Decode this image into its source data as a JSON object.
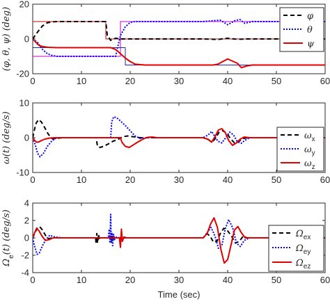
{
  "chart_data": [
    {
      "type": "line",
      "ylabel": "(φ, θ, ψ) (deg)",
      "xlabel": "",
      "xlim": [
        0,
        60
      ],
      "ylim": [
        -20,
        20
      ],
      "xticks": [
        0,
        10,
        20,
        30,
        40,
        50,
        60
      ],
      "yticks": [
        -20,
        0,
        20
      ],
      "legend_position": "top-right",
      "series": [
        {
          "name": "φ",
          "legend_main": "φ",
          "legend_sub": "",
          "color": "#000000",
          "dash": "6,4",
          "width": 2,
          "x": [
            0,
            1,
            2,
            3,
            4,
            5,
            10,
            15,
            15.3,
            16,
            17,
            18,
            19,
            20,
            30,
            35,
            38,
            40,
            42,
            44,
            50,
            60
          ],
          "y": [
            0,
            4,
            7.5,
            9.3,
            9.8,
            10,
            10,
            10,
            2,
            -0.8,
            0.4,
            0,
            0,
            0,
            0,
            0,
            -0.3,
            0.4,
            -0.2,
            0,
            0,
            0
          ]
        },
        {
          "name": "θ",
          "legend_main": "θ",
          "legend_sub": "",
          "color": "#0000ff",
          "dash": "2,2",
          "width": 2,
          "x": [
            0,
            1,
            2,
            3,
            4,
            5,
            10,
            17,
            17.5,
            18,
            19,
            20,
            21,
            30,
            35,
            37,
            38.5,
            40,
            41.5,
            42.5,
            43.5,
            45,
            50,
            60
          ],
          "y": [
            0,
            -2,
            -6,
            -8.5,
            -9.5,
            -10,
            -10,
            -10,
            -4,
            2,
            7,
            9.5,
            10,
            10,
            10,
            10.5,
            10.8,
            8.2,
            10.5,
            11.2,
            9,
            10,
            10,
            10
          ]
        },
        {
          "name": "ψ",
          "legend_main": "ψ",
          "legend_sub": "",
          "color": "#e00000",
          "dash": "",
          "width": 2,
          "x": [
            0,
            0.5,
            1,
            1.5,
            2,
            3,
            5,
            10,
            16,
            17,
            18,
            19,
            20,
            21,
            23,
            25,
            30,
            35,
            37,
            38,
            40,
            42,
            42.8,
            44,
            45,
            50,
            60
          ],
          "y": [
            0,
            -1.5,
            -3,
            -4,
            -4.3,
            -4.8,
            -5,
            -5,
            -5,
            -6,
            -8.5,
            -11,
            -13,
            -14.5,
            -15,
            -15,
            -15,
            -15,
            -15,
            -14.5,
            -11.5,
            -14,
            -16.5,
            -15.5,
            -15,
            -15,
            -15
          ]
        },
        {
          "name": "θ-reference",
          "legend_main": "",
          "legend_sub": "",
          "color": "#cc00cc",
          "dash": "",
          "width": 1,
          "x": [
            0,
            18,
            18,
            60
          ],
          "y": [
            -10,
            -10,
            10,
            10
          ]
        },
        {
          "name": "φ-reference",
          "legend_main": "",
          "legend_sub": "",
          "color": "#cc0000",
          "dash": "",
          "width": 1,
          "x": [
            0,
            15,
            15,
            60
          ],
          "y": [
            10,
            10,
            0,
            0
          ]
        },
        {
          "name": "ψ-reference",
          "legend_main": "",
          "legend_sub": "",
          "color": "#2222aa",
          "dash": "",
          "width": 1,
          "x": [
            0,
            19,
            19,
            60
          ],
          "y": [
            -5,
            -5,
            -15,
            -15
          ]
        }
      ]
    },
    {
      "type": "line",
      "ylabel": "ω(t) (deg/s)",
      "xlabel": "",
      "xlim": [
        0,
        60
      ],
      "ylim": [
        -10,
        10
      ],
      "xticks": [
        0,
        10,
        20,
        30,
        40,
        50,
        60
      ],
      "yticks": [
        -10,
        0,
        10
      ],
      "legend_position": "top-right",
      "series": [
        {
          "name": "ωx",
          "legend_main": "ω",
          "legend_sub": "x",
          "color": "#000000",
          "dash": "6,4",
          "width": 2,
          "x": [
            0,
            0.3,
            0.7,
            1.2,
            1.8,
            2.5,
            3.2,
            4,
            5,
            6,
            7,
            13,
            13.3,
            13.8,
            14.5,
            15.5,
            16.5,
            17.5,
            18.5,
            19.5,
            20.5,
            22,
            35,
            36,
            36.8,
            37.5,
            38.2,
            39,
            39.8,
            40.6,
            41.4,
            42.2,
            43,
            44,
            60
          ],
          "y": [
            0,
            2,
            4.2,
            5.2,
            4.5,
            2.8,
            1,
            -0.3,
            -0.2,
            0,
            0,
            0,
            -2.5,
            -2.8,
            -2.5,
            -1.8,
            -1,
            -0.5,
            0.3,
            0.5,
            0.3,
            0,
            0,
            -0.5,
            -1.3,
            -0.2,
            1.5,
            2,
            1.3,
            -0.3,
            -1.5,
            -1.2,
            -0.3,
            0,
            0
          ]
        },
        {
          "name": "ωy",
          "legend_main": "ω",
          "legend_sub": "y",
          "color": "#0000ff",
          "dash": "2,2",
          "width": 2,
          "x": [
            0,
            0.5,
            1,
            1.5,
            2.2,
            3,
            4,
            5,
            6,
            16,
            16.2,
            16.6,
            17.2,
            18,
            19,
            20,
            21,
            22,
            23,
            35,
            36,
            36.7,
            37.3,
            38,
            38.8,
            39.6,
            40.4,
            41.2,
            42,
            42.8,
            43.5,
            44.5,
            60
          ],
          "y": [
            0,
            -2,
            -4.5,
            -5.5,
            -4.5,
            -2.5,
            -0.8,
            0,
            0,
            0,
            4.5,
            6,
            5.8,
            4.8,
            3.5,
            2,
            0.5,
            -0.2,
            0,
            0,
            0.8,
            1.8,
            0.5,
            -1,
            -1.5,
            0,
            1.6,
            0.8,
            -1.2,
            -1.6,
            -0.8,
            0,
            0
          ]
        },
        {
          "name": "ωz",
          "legend_main": "ω",
          "legend_sub": "z",
          "color": "#e00000",
          "dash": "",
          "width": 2,
          "x": [
            0,
            0.4,
            0.8,
            1.3,
            1.8,
            2.5,
            3.5,
            4.5,
            6,
            18,
            18.3,
            19,
            19.8,
            20.5,
            21.5,
            22.5,
            23.5,
            24.5,
            25.5,
            35,
            36,
            36.7,
            37.4,
            38.1,
            38.8,
            39.5,
            40.2,
            41,
            41.8,
            42.6,
            43.4,
            44.5,
            60
          ],
          "y": [
            0,
            -0.8,
            -1.3,
            -1.2,
            -0.8,
            -0.4,
            -0.1,
            0,
            0,
            0,
            -1.3,
            -2.5,
            -2.8,
            -2.2,
            -1.3,
            -0.5,
            0.1,
            0.2,
            0,
            0,
            -0.5,
            -1.3,
            0.3,
            2.2,
            2.6,
            1.5,
            -0.8,
            -2.2,
            -1.5,
            -0.4,
            0.2,
            0,
            0
          ]
        }
      ]
    },
    {
      "type": "line",
      "ylabel": "Ωe(t) (deg/s)",
      "ylabel_main": "Ω",
      "ylabel_sub": "e",
      "ylabel_rest": "(t) (deg/s)",
      "xlabel": "Time (sec)",
      "xlim": [
        0,
        60
      ],
      "ylim": [
        -4,
        4
      ],
      "xticks": [
        0,
        10,
        20,
        30,
        40,
        50,
        60
      ],
      "yticks": [
        -4,
        -2,
        0,
        2,
        4
      ],
      "legend_position": "top-right",
      "series": [
        {
          "name": "Ωex",
          "legend_main": "Ω",
          "legend_sub": "ex",
          "color": "#000000",
          "dash": "6,4",
          "width": 2,
          "x": [
            0,
            0.4,
            0.9,
            1.4,
            2,
            2.6,
            3.3,
            4,
            5,
            12.9,
            13,
            13.15,
            13.3,
            13.5,
            13.7,
            14,
            15.8,
            16,
            16.2,
            16.4,
            16.6,
            17,
            35,
            35.7,
            36.4,
            37.1,
            37.8,
            38.5,
            39.2,
            40,
            40.8,
            41.6,
            42.4,
            43.2,
            44,
            60
          ],
          "y": [
            0,
            0.5,
            1.1,
            1.3,
            0.9,
            0.3,
            -0.1,
            0,
            0,
            0,
            -0.7,
            0.5,
            -0.6,
            0.4,
            -0.2,
            0,
            0,
            0.4,
            -0.5,
            0.3,
            -0.1,
            0,
            0,
            0.5,
            0.2,
            -0.5,
            -0.4,
            0.5,
            1.1,
            0.8,
            0.2,
            -0.6,
            -0.4,
            0.2,
            0,
            0
          ]
        },
        {
          "name": "Ωey",
          "legend_main": "Ω",
          "legend_sub": "ey",
          "color": "#0000ff",
          "dash": "2,2",
          "width": 2,
          "x": [
            0,
            0.4,
            0.9,
            1.4,
            2,
            2.7,
            3.5,
            4.5,
            6,
            15.5,
            15.7,
            15.85,
            16,
            16.1,
            16.25,
            16.4,
            16.6,
            16.8,
            17.2,
            17.8,
            35,
            35.8,
            36.6,
            37.4,
            38.1,
            38.8,
            39.5,
            40.2,
            41,
            41.8,
            42.6,
            43.4,
            44.5,
            60
          ],
          "y": [
            0,
            -1,
            -1.9,
            -1.7,
            -0.9,
            -0.2,
            0.3,
            0.1,
            0,
            0,
            1,
            -0.6,
            2.7,
            -0.5,
            0.6,
            -0.9,
            0.4,
            -0.2,
            0.1,
            0,
            0,
            0.6,
            1.2,
            0.2,
            -1.2,
            -0.9,
            1,
            2.1,
            1.2,
            -0.6,
            -1,
            -0.3,
            0,
            0
          ]
        },
        {
          "name": "Ωez",
          "legend_main": "Ω",
          "legend_sub": "ez",
          "color": "#e00000",
          "dash": "",
          "width": 2,
          "x": [
            0,
            0.4,
            0.8,
            1.3,
            1.9,
            2.6,
            3.4,
            4.2,
            5.5,
            17.8,
            18,
            18.2,
            18.4,
            18.7,
            19.2,
            20,
            35,
            35.8,
            36.5,
            37.2,
            37.9,
            38.6,
            39.3,
            40,
            40.7,
            41.4,
            42.1,
            42.8,
            43.6,
            44.6,
            60
          ],
          "y": [
            0,
            0.6,
            1.1,
            0.8,
            0.2,
            -0.3,
            -0.2,
            0,
            0,
            0,
            -1.1,
            1,
            -0.4,
            0.1,
            0,
            0,
            0,
            0.5,
            1.6,
            2.3,
            1.2,
            -1.3,
            -2.9,
            -2.5,
            -0.8,
            0.9,
            1.3,
            0.6,
            0,
            0,
            0
          ]
        }
      ]
    }
  ]
}
